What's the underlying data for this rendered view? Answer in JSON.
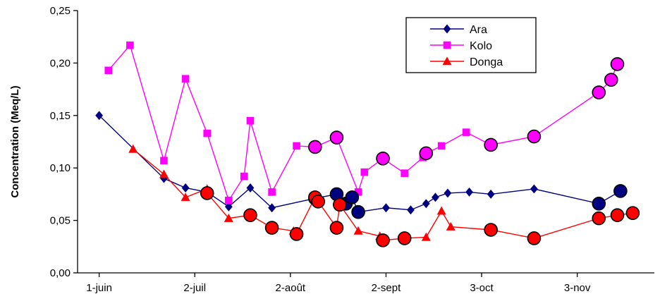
{
  "chart_data": {
    "type": "line",
    "title": "",
    "xlabel": "",
    "ylabel": "Concentration (Meq/L)",
    "ylim": [
      0,
      0.25
    ],
    "yticks": [
      "0,00",
      "0,05",
      "0,10",
      "0,15",
      "0,20",
      "0,25"
    ],
    "xlim": [
      "2000-05-25",
      "2000-11-28"
    ],
    "xticks": [
      {
        "date": "2000-06-01",
        "label": "1-juin"
      },
      {
        "date": "2000-07-02",
        "label": "2-juil"
      },
      {
        "date": "2000-08-02",
        "label": "2-août"
      },
      {
        "date": "2000-09-02",
        "label": "2-sept"
      },
      {
        "date": "2000-10-03",
        "label": "3-oct"
      },
      {
        "date": "2000-11-03",
        "label": "3-nov"
      }
    ],
    "grid": false,
    "legend": {
      "position": "top-right"
    },
    "series": [
      {
        "name": "Ara",
        "color": "#000080",
        "marker": "diamond",
        "points": [
          {
            "x": "2000-06-01",
            "y": 0.15
          },
          {
            "x": "2000-06-22",
            "y": 0.09
          },
          {
            "x": "2000-06-29",
            "y": 0.081
          },
          {
            "x": "2000-07-06",
            "y": 0.077
          },
          {
            "x": "2000-07-13",
            "y": 0.063
          },
          {
            "x": "2000-07-20",
            "y": 0.081
          },
          {
            "x": "2000-07-27",
            "y": 0.062
          },
          {
            "x": "2000-08-10",
            "y": 0.071,
            "circled": true
          },
          {
            "x": "2000-08-17",
            "y": 0.075,
            "circled": true
          },
          {
            "x": "2000-08-20",
            "y": 0.066,
            "circled": true
          },
          {
            "x": "2000-08-22",
            "y": 0.072,
            "circled": true
          },
          {
            "x": "2000-08-24",
            "y": 0.058,
            "circled": true
          },
          {
            "x": "2000-09-02",
            "y": 0.062
          },
          {
            "x": "2000-09-10",
            "y": 0.06
          },
          {
            "x": "2000-09-15",
            "y": 0.066
          },
          {
            "x": "2000-09-18",
            "y": 0.072
          },
          {
            "x": "2000-09-22",
            "y": 0.076
          },
          {
            "x": "2000-09-29",
            "y": 0.077
          },
          {
            "x": "2000-10-06",
            "y": 0.075
          },
          {
            "x": "2000-10-20",
            "y": 0.08
          },
          {
            "x": "2000-11-10",
            "y": 0.066,
            "circled": true
          },
          {
            "x": "2000-11-17",
            "y": 0.078,
            "circled": true
          }
        ]
      },
      {
        "name": "Kolo",
        "color": "#ff00ff",
        "marker": "square",
        "points": [
          {
            "x": "2000-06-04",
            "y": 0.193
          },
          {
            "x": "2000-06-11",
            "y": 0.217
          },
          {
            "x": "2000-06-22",
            "y": 0.107
          },
          {
            "x": "2000-06-29",
            "y": 0.185
          },
          {
            "x": "2000-07-06",
            "y": 0.133
          },
          {
            "x": "2000-07-13",
            "y": 0.069
          },
          {
            "x": "2000-07-18",
            "y": 0.092
          },
          {
            "x": "2000-07-20",
            "y": 0.145
          },
          {
            "x": "2000-07-27",
            "y": 0.077
          },
          {
            "x": "2000-08-04",
            "y": 0.121
          },
          {
            "x": "2000-08-10",
            "y": 0.12,
            "circled": true
          },
          {
            "x": "2000-08-17",
            "y": 0.129,
            "circled": true
          },
          {
            "x": "2000-08-24",
            "y": 0.077
          },
          {
            "x": "2000-08-26",
            "y": 0.096
          },
          {
            "x": "2000-09-01",
            "y": 0.109,
            "circled": true
          },
          {
            "x": "2000-09-08",
            "y": 0.095
          },
          {
            "x": "2000-09-14",
            "y": 0.11
          },
          {
            "x": "2000-09-15",
            "y": 0.114,
            "circled": true
          },
          {
            "x": "2000-09-20",
            "y": 0.121
          },
          {
            "x": "2000-09-28",
            "y": 0.134
          },
          {
            "x": "2000-10-06",
            "y": 0.122,
            "circled": true
          },
          {
            "x": "2000-10-20",
            "y": 0.13,
            "circled": true
          },
          {
            "x": "2000-11-10",
            "y": 0.172,
            "circled": true
          },
          {
            "x": "2000-11-14",
            "y": 0.184,
            "circled": true
          },
          {
            "x": "2000-11-16",
            "y": 0.199,
            "circled": true
          }
        ]
      },
      {
        "name": "Donga",
        "color": "#ff0000",
        "marker": "triangle",
        "points": [
          {
            "x": "2000-06-12",
            "y": 0.118
          },
          {
            "x": "2000-06-22",
            "y": 0.094
          },
          {
            "x": "2000-06-29",
            "y": 0.072
          },
          {
            "x": "2000-07-06",
            "y": 0.08
          },
          {
            "x": "2000-07-06",
            "y": 0.076,
            "circled": true
          },
          {
            "x": "2000-07-13",
            "y": 0.052
          },
          {
            "x": "2000-07-20",
            "y": 0.055,
            "circled": true
          },
          {
            "x": "2000-07-27",
            "y": 0.043,
            "circled": true
          },
          {
            "x": "2000-08-03",
            "y": 0.04
          },
          {
            "x": "2000-08-04",
            "y": 0.037,
            "circled": true
          },
          {
            "x": "2000-08-10",
            "y": 0.072,
            "circled": true
          },
          {
            "x": "2000-08-11",
            "y": 0.068,
            "circled": true
          },
          {
            "x": "2000-08-17",
            "y": 0.043,
            "circled": true
          },
          {
            "x": "2000-08-18",
            "y": 0.065,
            "circled": true
          },
          {
            "x": "2000-08-24",
            "y": 0.04
          },
          {
            "x": "2000-08-31",
            "y": 0.035
          },
          {
            "x": "2000-09-01",
            "y": 0.031,
            "circled": true
          },
          {
            "x": "2000-09-08",
            "y": 0.033,
            "circled": true
          },
          {
            "x": "2000-09-15",
            "y": 0.034
          },
          {
            "x": "2000-09-20",
            "y": 0.059
          },
          {
            "x": "2000-09-23",
            "y": 0.044
          },
          {
            "x": "2000-10-06",
            "y": 0.041,
            "circled": true
          },
          {
            "x": "2000-10-20",
            "y": 0.033,
            "circled": true
          },
          {
            "x": "2000-11-10",
            "y": 0.052,
            "circled": true
          },
          {
            "x": "2000-11-16",
            "y": 0.055,
            "circled": true
          },
          {
            "x": "2000-11-21",
            "y": 0.057,
            "circled": true
          }
        ]
      }
    ]
  }
}
